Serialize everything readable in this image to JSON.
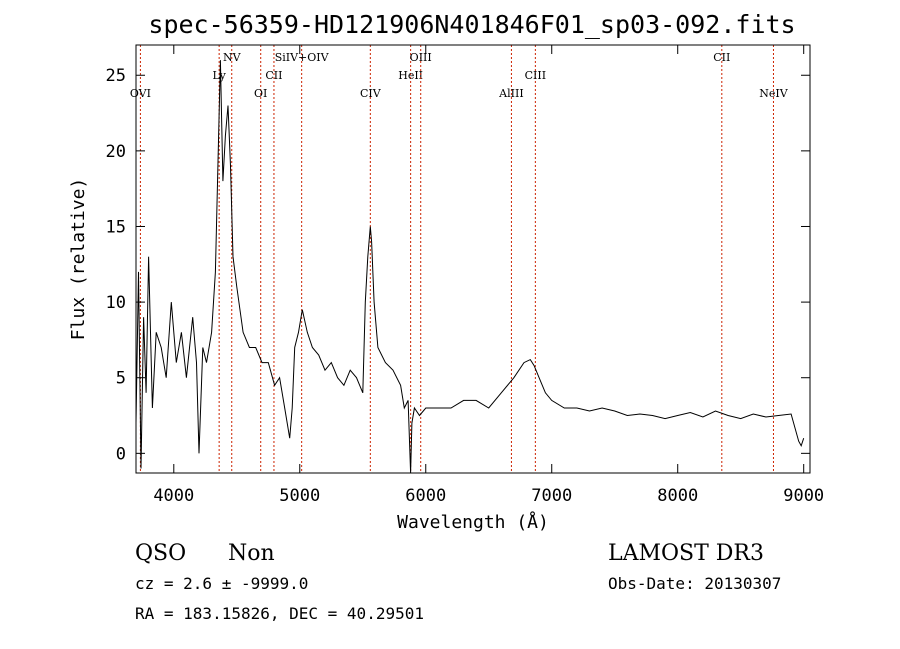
{
  "chart_data": {
    "type": "line",
    "title": "spec-56359-HD121906N401846F01_sp03-092.fits",
    "xlabel": "Wavelength (Å)",
    "ylabel": "Flux (relative)",
    "xlim": [
      3700,
      9050
    ],
    "ylim": [
      -1.3,
      27
    ],
    "xticks": [
      4000,
      5000,
      6000,
      7000,
      8000,
      9000
    ],
    "yticks": [
      0,
      5,
      10,
      15,
      20,
      25
    ],
    "grid": false,
    "line_color": "#000000",
    "marker_color": "#cc2200",
    "series": [
      {
        "x": [
          3700,
          3720,
          3740,
          3760,
          3780,
          3800,
          3830,
          3860,
          3900,
          3940,
          3980,
          4020,
          4060,
          4100,
          4150,
          4180,
          4200,
          4230,
          4260,
          4300,
          4330,
          4350,
          4370,
          4390,
          4410,
          4430,
          4450,
          4470,
          4500,
          4550,
          4600,
          4650,
          4700,
          4750,
          4800,
          4840,
          4880,
          4920,
          4940,
          4960,
          4990,
          5020,
          5060,
          5100,
          5150,
          5200,
          5250,
          5300,
          5350,
          5400,
          5450,
          5500,
          5520,
          5540,
          5560,
          5570,
          5590,
          5620,
          5680,
          5740,
          5800,
          5830,
          5860,
          5880,
          5890,
          5910,
          5950,
          6000,
          6100,
          6200,
          6300,
          6400,
          6500,
          6600,
          6700,
          6780,
          6830,
          6860,
          6900,
          6950,
          7000,
          7100,
          7200,
          7300,
          7400,
          7500,
          7600,
          7700,
          7800,
          7900,
          8000,
          8100,
          8200,
          8300,
          8400,
          8500,
          8600,
          8700,
          8800,
          8900,
          8960,
          8980,
          9000
        ],
        "y": [
          2,
          12,
          -1,
          9,
          4,
          13,
          3,
          8,
          7,
          5,
          10,
          6,
          8,
          5,
          9,
          6,
          0,
          7,
          6,
          8,
          12,
          19,
          26,
          18,
          21,
          23,
          19,
          13,
          11,
          8,
          7,
          7,
          6,
          6,
          4.5,
          5,
          3,
          1,
          3,
          7,
          8,
          9.5,
          8,
          7,
          6.5,
          5.5,
          6,
          5,
          4.5,
          5.5,
          5,
          4,
          10,
          13,
          15,
          14,
          10,
          7,
          6,
          5.5,
          4.5,
          3,
          3.5,
          -1.3,
          2,
          3,
          2.5,
          3,
          3,
          3,
          3.5,
          3.5,
          3,
          4,
          5,
          6,
          6.2,
          5.8,
          5,
          4,
          3.5,
          3,
          3,
          2.8,
          3,
          2.8,
          2.5,
          2.6,
          2.5,
          2.3,
          2.5,
          2.7,
          2.4,
          2.8,
          2.5,
          2.3,
          2.6,
          2.4,
          2.5,
          2.6,
          0.8,
          0.5,
          1
        ]
      }
    ],
    "lines": [
      {
        "name": "OVI",
        "x": 3735
      },
      {
        "name": "Ly",
        "x": 4360
      },
      {
        "name": "NV",
        "x": 4460
      },
      {
        "name": "OI",
        "x": 4690
      },
      {
        "name": "CII",
        "x": 4795
      },
      {
        "name": "SiIV+OIV",
        "x": 5015
      },
      {
        "name": "CIV",
        "x": 5560
      },
      {
        "name": "HeII",
        "x": 5880
      },
      {
        "name": "OIII",
        "x": 5960
      },
      {
        "name": "AlIII",
        "x": 6680
      },
      {
        "name": "CIII",
        "x": 6870
      },
      {
        "name": "CII",
        "x": 8350
      },
      {
        "name": "NeIV",
        "x": 8760
      }
    ]
  },
  "info": {
    "class": "QSO",
    "subclass": "Non",
    "cz": "cz = 2.6 ± -9999.0",
    "radec": "RA = 183.15826, DEC =  40.29501",
    "survey": "LAMOST DR3",
    "obs_date": "Obs-Date: 20130307"
  }
}
